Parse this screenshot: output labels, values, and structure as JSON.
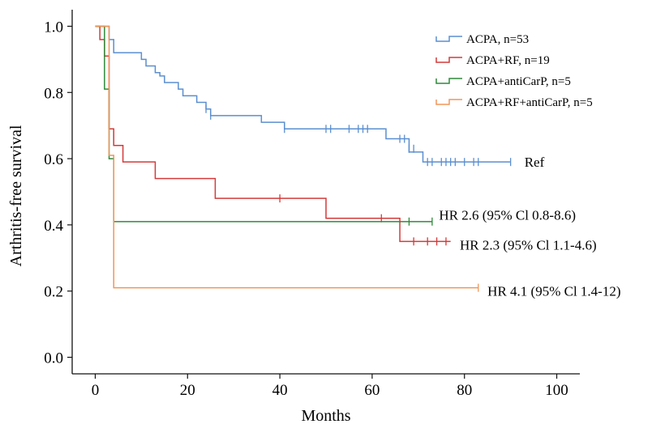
{
  "chart_data": {
    "type": "line",
    "title": "",
    "xlabel": "Months",
    "ylabel": "Arthritis-free survival",
    "xlim": [
      -5,
      105
    ],
    "ylim": [
      -0.05,
      1.05
    ],
    "xticks": [
      0,
      20,
      40,
      60,
      80,
      100
    ],
    "xtick_labels": [
      "0",
      "20",
      "40",
      "60",
      "80",
      "100"
    ],
    "yticks": [
      0.0,
      0.2,
      0.4,
      0.6,
      0.8,
      1.0
    ],
    "ytick_labels": [
      "0.0",
      "0.2",
      "0.4",
      "0.6",
      "0.8",
      "1.0"
    ],
    "grid": false,
    "legend_position": "top-right",
    "series": [
      {
        "name": "ACPA, n=53",
        "color": "#5b8fd0",
        "steps": [
          [
            0,
            1.0
          ],
          [
            3,
            0.96
          ],
          [
            4,
            0.92
          ],
          [
            10,
            0.9
          ],
          [
            11,
            0.88
          ],
          [
            13,
            0.86
          ],
          [
            14,
            0.85
          ],
          [
            15,
            0.83
          ],
          [
            18,
            0.81
          ],
          [
            19,
            0.79
          ],
          [
            22,
            0.77
          ],
          [
            24,
            0.75
          ],
          [
            25,
            0.73
          ],
          [
            36,
            0.71
          ],
          [
            41,
            0.69
          ],
          [
            63,
            0.66
          ],
          [
            68,
            0.62
          ],
          [
            71,
            0.59
          ],
          [
            90,
            0.59
          ]
        ],
        "censored": [
          [
            24,
            0.75
          ],
          [
            25,
            0.73
          ],
          [
            41,
            0.69
          ],
          [
            50,
            0.69
          ],
          [
            51,
            0.69
          ],
          [
            55,
            0.69
          ],
          [
            57,
            0.69
          ],
          [
            58,
            0.69
          ],
          [
            59,
            0.69
          ],
          [
            66,
            0.66
          ],
          [
            67,
            0.66
          ],
          [
            68,
            0.63
          ],
          [
            69,
            0.63
          ],
          [
            72,
            0.59
          ],
          [
            73,
            0.59
          ],
          [
            75,
            0.59
          ],
          [
            76,
            0.59
          ],
          [
            77,
            0.59
          ],
          [
            78,
            0.59
          ],
          [
            80,
            0.59
          ],
          [
            82,
            0.59
          ],
          [
            83,
            0.59
          ],
          [
            90,
            0.59
          ]
        ]
      },
      {
        "name": "ACPA+RF, n=19",
        "color": "#d43a3a",
        "steps": [
          [
            0,
            1.0
          ],
          [
            1,
            0.96
          ],
          [
            2,
            0.91
          ],
          [
            3,
            0.69
          ],
          [
            4,
            0.64
          ],
          [
            6,
            0.59
          ],
          [
            13,
            0.54
          ],
          [
            26,
            0.48
          ],
          [
            50,
            0.42
          ],
          [
            66,
            0.35
          ],
          [
            77,
            0.35
          ]
        ],
        "censored": [
          [
            40,
            0.48
          ],
          [
            62,
            0.42
          ],
          [
            69,
            0.35
          ],
          [
            72,
            0.35
          ],
          [
            74,
            0.35
          ],
          [
            76,
            0.35
          ]
        ]
      },
      {
        "name": "ACPA+antiCarP, n=5",
        "color": "#2f8a3a",
        "steps": [
          [
            0,
            1.0
          ],
          [
            2,
            0.81
          ],
          [
            3,
            0.6
          ],
          [
            4,
            0.41
          ],
          [
            73,
            0.41
          ]
        ],
        "censored": [
          [
            68,
            0.41
          ],
          [
            73,
            0.41
          ]
        ]
      },
      {
        "name": "ACPA+RF+antiCarP, n=5",
        "color": "#f0965a",
        "steps": [
          [
            0,
            1.0
          ],
          [
            3,
            0.61
          ],
          [
            4,
            0.21
          ],
          [
            83,
            0.21
          ]
        ],
        "censored": [
          [
            83,
            0.21
          ]
        ]
      }
    ],
    "annotations": [
      {
        "text": "Ref",
        "x": 93,
        "y": 0.59
      },
      {
        "text": "HR 2.6 (95% Cl 0.8-8.6)",
        "x": 74.5,
        "y": 0.43
      },
      {
        "text": "HR 2.3 (95% Cl 1.1-4.6)",
        "x": 79,
        "y": 0.34
      },
      {
        "text": "HR 4.1 (95% Cl 1.4-12)",
        "x": 85,
        "y": 0.2
      }
    ]
  }
}
